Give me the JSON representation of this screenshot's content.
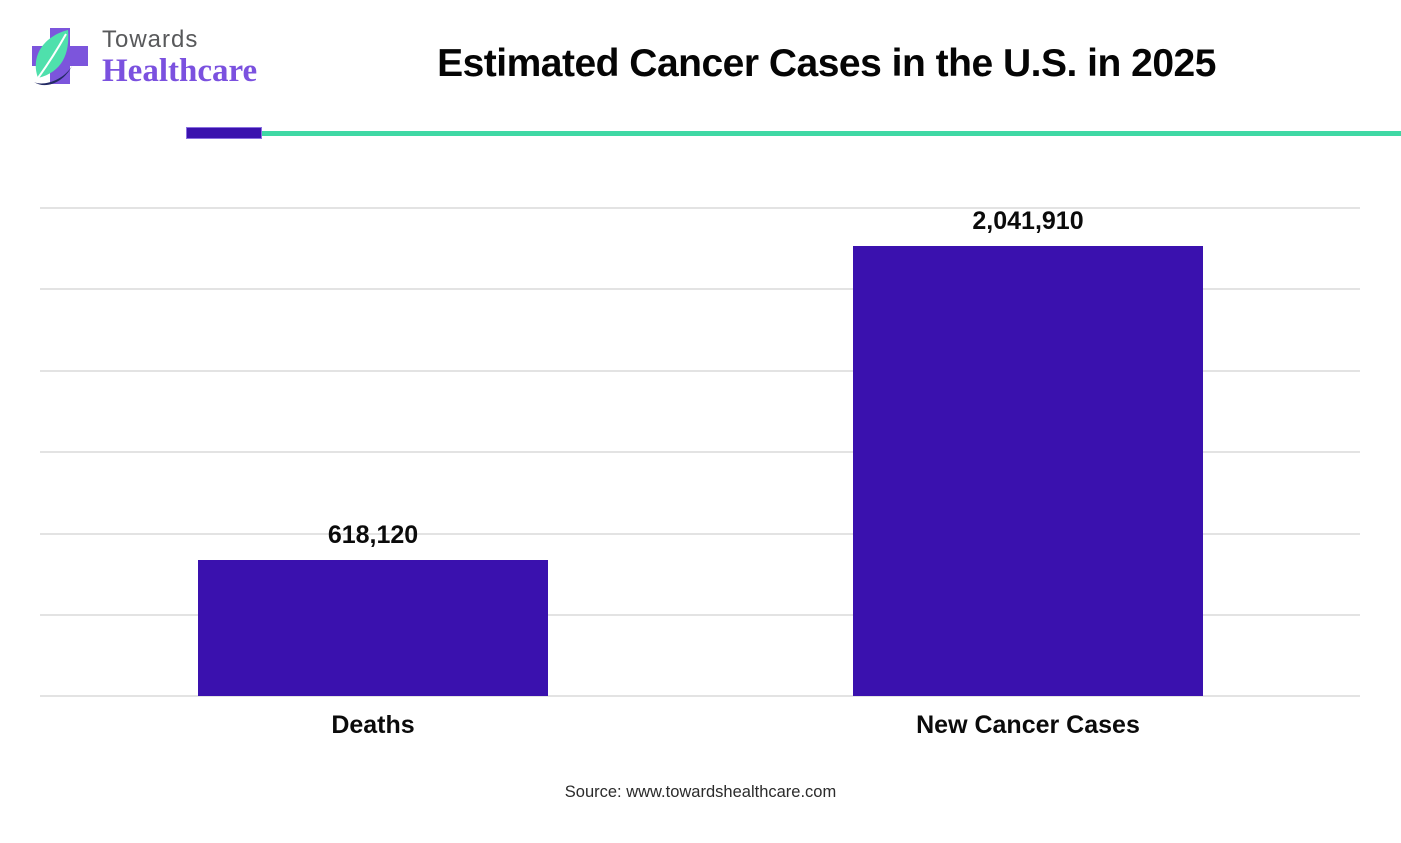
{
  "brand": {
    "name_top": "Towards",
    "name_bottom": "Healthcare",
    "logo_cross_color": "#7c55dc",
    "logo_leaf_color": "#4fe0ac",
    "logo_swoosh_color": "#232a63"
  },
  "header": {
    "title": "Estimated Cancer Cases in the U.S. in 2025"
  },
  "divider": {
    "accent_color": "#3a11ae",
    "line_color": "#3fd8a4"
  },
  "chart_data": {
    "type": "bar",
    "title": "Estimated Cancer Cases in the U.S. in 2025",
    "categories": [
      "Deaths",
      "New Cancer Cases"
    ],
    "values": [
      618120,
      2041910
    ],
    "value_labels": [
      "618,120",
      "2,041,910"
    ],
    "xlabel": "",
    "ylabel": "",
    "ylim": [
      0,
      2220000
    ],
    "grid": true,
    "gridline_count": 7,
    "legend": "none",
    "bar_color": "#3a11ae",
    "gridline_color": "#e3e3e3"
  },
  "footer": {
    "source": "Source: www.towardshealthcare.com"
  }
}
